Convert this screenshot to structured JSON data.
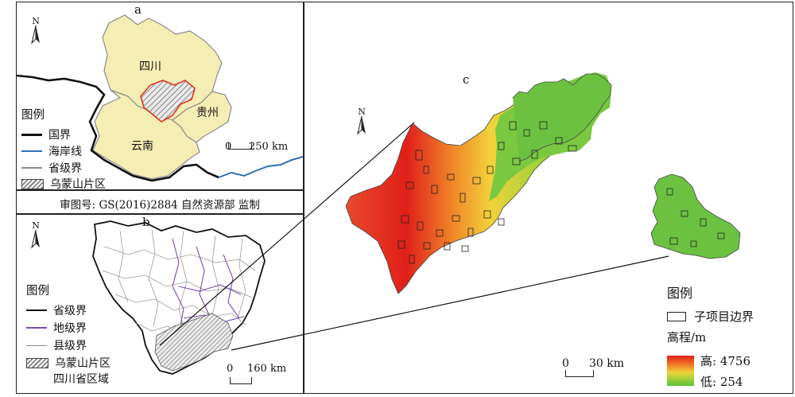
{
  "panel_a": {
    "label": "a",
    "north": "N",
    "provinces": {
      "sichuan": "四川",
      "guizhou": "贵州",
      "yunnan": "云南"
    },
    "legend": {
      "title": "图例",
      "items": [
        {
          "label": "国界",
          "symbol": "line",
          "color": "#111111"
        },
        {
          "label": "海岸线",
          "symbol": "line",
          "color": "#2f6fb7"
        },
        {
          "label": "省级界",
          "symbol": "line",
          "color": "#8a8a8a"
        },
        {
          "label": "乌蒙山片区",
          "symbol": "hatch",
          "color": "#777777"
        }
      ]
    },
    "scale": {
      "zero": "0",
      "value": "250 km"
    },
    "colors": {
      "province_fill": "#f5eeb4",
      "highlight_border": "#e03020",
      "coastline": "#2f6fb7"
    }
  },
  "review_number": "审图号: GS(2016)2884   自然资源部  监制",
  "panel_b": {
    "label": "b",
    "north": "N",
    "legend": {
      "title": "图例",
      "items": [
        {
          "label": "省级界",
          "symbol": "line",
          "color": "#111111"
        },
        {
          "label": "地级界",
          "symbol": "line",
          "color": "#7b4bb0"
        },
        {
          "label": "县级界",
          "symbol": "line",
          "color": "#8a8a8a"
        },
        {
          "label": "乌蒙山片区",
          "symbol": "hatch",
          "color": "#777777"
        },
        {
          "label": "四川省区域",
          "symbol": "none",
          "color": ""
        }
      ]
    },
    "scale": {
      "zero": "0",
      "value": "160 km"
    }
  },
  "panel_c": {
    "label": "c",
    "north": "N",
    "legend": {
      "title": "图例",
      "boundary": "子项目边界",
      "elevation_title": "高程/m",
      "high": "高: 4756",
      "low": "低: 254"
    },
    "scale": {
      "zero": "0",
      "value": "30 km"
    },
    "colors": {
      "high": "#e0201a",
      "low": "#5cc03a"
    }
  }
}
